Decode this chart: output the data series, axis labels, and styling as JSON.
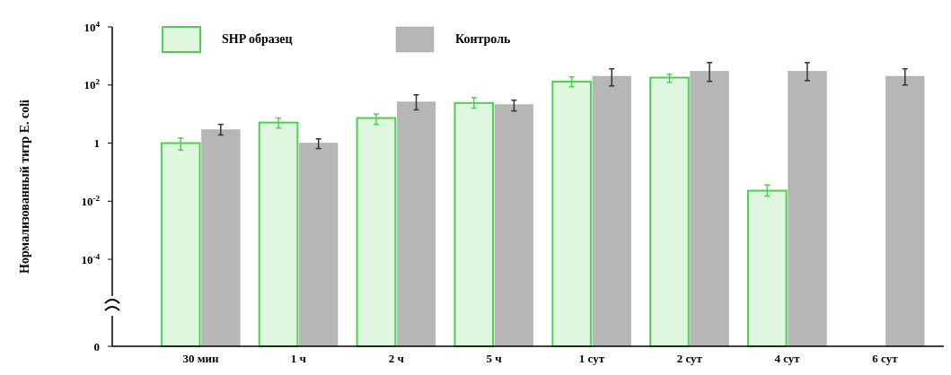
{
  "chart_data": {
    "type": "bar",
    "ylabel": "Нормализованный титр E. coli",
    "log": true,
    "categories": [
      "30 мин",
      "1 ч",
      "2 ч",
      "5 ч",
      "1 сут",
      "2 сут",
      "4 сут",
      "6 сут"
    ],
    "ylim": [
      0,
      10000
    ],
    "yticks": [
      0,
      {
        "value": 0.0001,
        "label": "10$^{-4}$"
      },
      {
        "value": 0.01,
        "label": "10$^{-2}$"
      },
      1,
      {
        "value": 100,
        "label": "10$^{2}$"
      },
      {
        "value": 10000,
        "label": "10$^{4}$"
      }
    ],
    "legend": "top left",
    "grid": false,
    "series": [
      {
        "name": "SHP образец",
        "color": "#4fcf4f",
        "values": [
          1,
          5.1,
          7.3,
          24,
          130,
          180,
          0.023,
          0
        ],
        "errors": [
          [
            0.57,
            1.5
          ],
          [
            3.3,
            7.3
          ],
          [
            4.4,
            10
          ],
          [
            16,
            37
          ],
          [
            87,
            190
          ],
          [
            124,
            235
          ],
          [
            0.015,
            0.036
          ],
          null
        ]
      },
      {
        "name": "Контроль",
        "color": "#a9a9a9",
        "values": [
          2.9,
          1,
          26,
          21,
          200,
          300,
          300,
          200
        ],
        "errors": [
          [
            1.9,
            4.4
          ],
          [
            0.65,
            1.4
          ],
          [
            14,
            46
          ],
          [
            12.8,
            30
          ],
          [
            93,
            360
          ],
          [
            133,
            590
          ],
          [
            142,
            590
          ],
          [
            100,
            360
          ]
        ]
      }
    ]
  }
}
